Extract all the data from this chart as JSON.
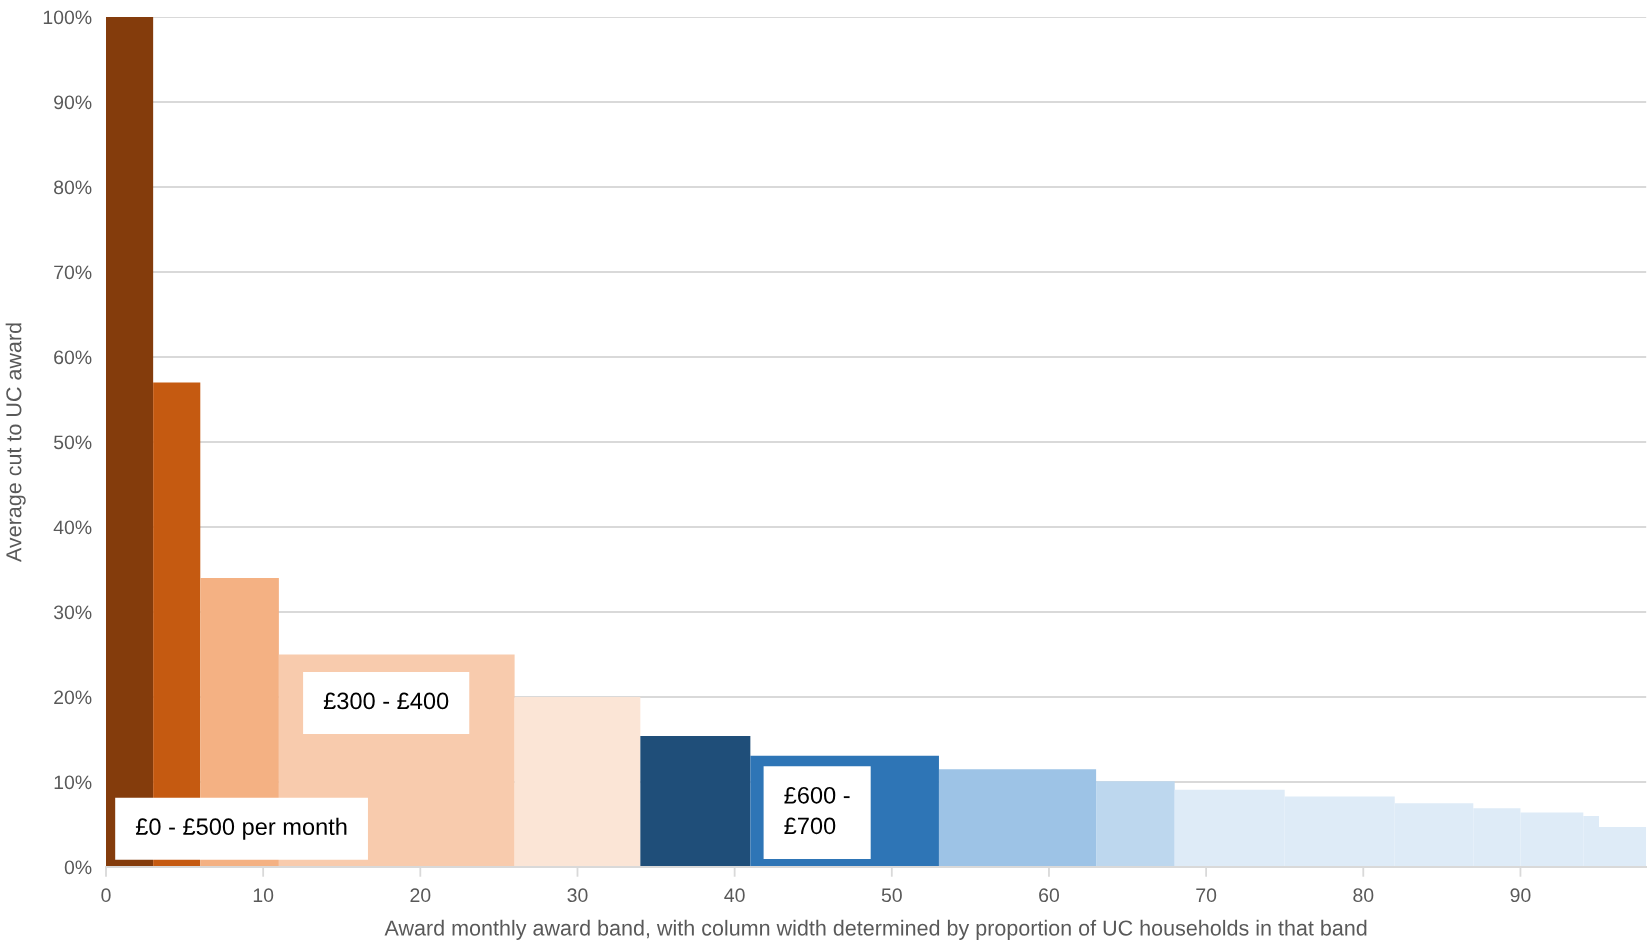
{
  "chart_data": {
    "type": "histogram",
    "xlabel": "Award monthly award band, with column width determined by proportion of UC households in that band",
    "ylabel": "Average cut to UC award",
    "bins": [
      0,
      3,
      6,
      11,
      26,
      34,
      41,
      53,
      63,
      68,
      75,
      82,
      87,
      90,
      94,
      95,
      98
    ],
    "values": [
      100,
      57,
      34,
      25,
      20,
      15.4,
      13.1,
      11.5,
      10.1,
      9.1,
      8.3,
      7.5,
      6.9,
      6.4,
      6.0,
      4.7
    ],
    "colors": [
      "#843c0c",
      "#c55a11",
      "#f4b183",
      "#f8cbad",
      "#fbe5d6",
      "#1f4e79",
      "#2e75b6",
      "#9dc3e6",
      "#bdd7ee",
      "#deebf7",
      "#deebf7",
      "#deebf7",
      "#deebf7",
      "#deebf7",
      "#deebf7",
      "#deebf7"
    ],
    "xlim": [
      0,
      98
    ],
    "xticks": [
      0,
      10,
      20,
      30,
      40,
      50,
      60,
      70,
      80,
      90
    ],
    "ylim": [
      0,
      100
    ],
    "yticks": [
      {
        "value": 0,
        "label": "0%"
      },
      {
        "value": 10,
        "label": "10%"
      },
      {
        "value": 20,
        "label": "20%"
      },
      {
        "value": 30,
        "label": "30%"
      },
      {
        "value": 40,
        "label": "40%"
      },
      {
        "value": 50,
        "label": "50%"
      },
      {
        "value": 60,
        "label": "60%"
      },
      {
        "value": 70,
        "label": "70%"
      },
      {
        "value": 80,
        "label": "80%"
      },
      {
        "value": 90,
        "label": "90%"
      },
      {
        "value": 100,
        "label": "100%"
      }
    ],
    "grid": "y",
    "annotations": [
      "£300 - £400",
      "£0 - £500 per month",
      "£600 -\n£700"
    ]
  }
}
